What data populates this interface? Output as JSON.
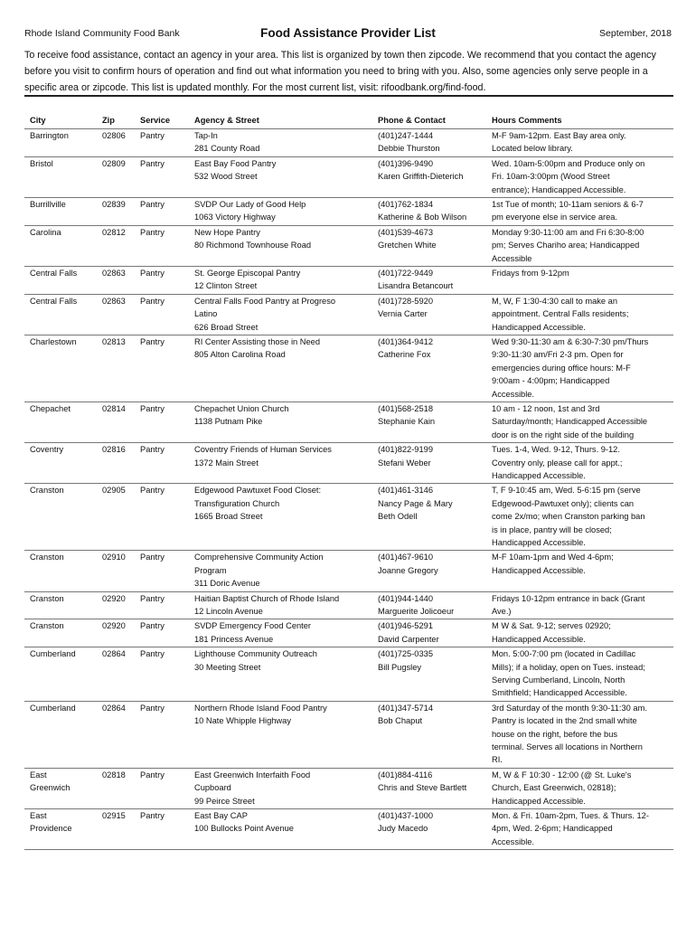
{
  "header": {
    "organization": "Rhode Island Community Food Bank",
    "title": "Food Assistance Provider List",
    "date": "September, 2018"
  },
  "intro": "To receive food assistance, contact an agency in your area. This list is organized by town then zipcode. We recommend that you contact the agency before you visit to confirm hours of operation and find out what information you need to bring with you. Also, some agencies only serve people in a specific area or zipcode. This list is updated monthly. For the most current list, visit: rifoodbank.org/find-food.",
  "table": {
    "columns": [
      "City",
      "Zip",
      "Service",
      "Agency & Street",
      "Phone & Contact",
      "Hours Comments"
    ],
    "rows": [
      {
        "city": [
          "Barrington"
        ],
        "zip": "02806",
        "service": "Pantry",
        "agency": [
          "Tap-In",
          "281 County Road"
        ],
        "contact": [
          "(401)247-1444",
          "Debbie Thurston"
        ],
        "hours": [
          "M-F 9am-12pm. East Bay area only.",
          "Located below library."
        ]
      },
      {
        "city": [
          "Bristol"
        ],
        "zip": "02809",
        "service": "Pantry",
        "agency": [
          "East Bay Food Pantry",
          "532 Wood Street"
        ],
        "contact": [
          "(401)396-9490",
          "Karen Griffith-Dieterich"
        ],
        "hours": [
          "Wed. 10am-5:00pm and Produce only on",
          "Fri. 10am-3:00pm (Wood Street",
          "entrance); Handicapped Accessible."
        ]
      },
      {
        "city": [
          "Burrillville"
        ],
        "zip": "02839",
        "service": "Pantry",
        "agency": [
          "SVDP Our Lady of Good Help",
          "1063 Victory Highway"
        ],
        "contact": [
          "(401)762-1834",
          "Katherine & Bob Wilson"
        ],
        "hours": [
          "1st Tue of month; 10-11am seniors & 6-7",
          "pm everyone else in service area."
        ]
      },
      {
        "city": [
          "Carolina"
        ],
        "zip": "02812",
        "service": "Pantry",
        "agency": [
          "New Hope Pantry",
          "80 Richmond Townhouse Road"
        ],
        "contact": [
          "(401)539-4673",
          "Gretchen White"
        ],
        "hours": [
          "Monday 9:30-11:00 am and Fri 6:30-8:00",
          "pm; Serves Chariho area; Handicapped",
          "Accessible"
        ]
      },
      {
        "city": [
          "Central Falls"
        ],
        "zip": "02863",
        "service": "Pantry",
        "agency": [
          "St. George Episcopal Pantry",
          "12 Clinton Street"
        ],
        "contact": [
          "(401)722-9449",
          "Lisandra Betancourt"
        ],
        "hours": [
          "Fridays from 9-12pm"
        ]
      },
      {
        "city": [
          "Central Falls"
        ],
        "zip": "02863",
        "service": "Pantry",
        "agency": [
          "Central Falls Food Pantry at Progreso",
          "Latino",
          "626 Broad Street"
        ],
        "contact": [
          "(401)728-5920",
          "Vernia Carter"
        ],
        "hours": [
          "M, W, F 1:30-4:30 call to make an",
          "appointment. Central Falls residents;",
          "Handicapped Accessible."
        ]
      },
      {
        "city": [
          "Charlestown"
        ],
        "zip": "02813",
        "service": "Pantry",
        "agency": [
          "RI Center Assisting those in Need",
          "805 Alton Carolina Road"
        ],
        "contact": [
          "(401)364-9412",
          "Catherine Fox"
        ],
        "hours": [
          "Wed 9:30-11:30 am & 6:30-7:30 pm/Thurs",
          "9:30-11:30 am/Fri 2-3 pm. Open for",
          "emergencies during office hours: M-F",
          "9:00am - 4:00pm; Handicapped",
          "Accessible."
        ]
      },
      {
        "city": [
          "Chepachet"
        ],
        "zip": "02814",
        "service": "Pantry",
        "agency": [
          "Chepachet Union Church",
          "1138 Putnam Pike"
        ],
        "contact": [
          "(401)568-2518",
          "Stephanie Kain"
        ],
        "hours": [
          "10 am - 12 noon, 1st and 3rd",
          "Saturday/month; Handicapped Accessible",
          "door is on the right side of the building"
        ]
      },
      {
        "city": [
          "Coventry"
        ],
        "zip": "02816",
        "service": "Pantry",
        "agency": [
          "Coventry Friends of Human Services",
          "1372 Main Street"
        ],
        "contact": [
          "(401)822-9199",
          "Stefani Weber"
        ],
        "hours": [
          "Tues. 1-4, Wed. 9-12, Thurs. 9-12.",
          "Coventry only, please call for appt.;",
          "Handicapped Accessible."
        ]
      },
      {
        "city": [
          "Cranston"
        ],
        "zip": "02905",
        "service": "Pantry",
        "agency": [
          "Edgewood Pawtuxet Food Closet:",
          "Transfiguration Church",
          "1665 Broad Street"
        ],
        "contact": [
          "(401)461-3146",
          "Nancy Page & Mary",
          "Beth Odell"
        ],
        "hours": [
          "T, F 9-10:45 am, Wed. 5-6:15 pm (serve",
          "Edgewood-Pawtuxet only); clients can",
          "come 2x/mo; when Cranston parking ban",
          "is in place, pantry will be closed;",
          "Handicapped Accessible."
        ]
      },
      {
        "city": [
          "Cranston"
        ],
        "zip": "02910",
        "service": "Pantry",
        "agency": [
          "Comprehensive Community Action",
          "Program",
          "311 Doric Avenue"
        ],
        "contact": [
          "(401)467-9610",
          "Joanne Gregory"
        ],
        "hours": [
          "M-F 10am-1pm and Wed 4-6pm;",
          "Handicapped Accessible."
        ]
      },
      {
        "city": [
          "Cranston"
        ],
        "zip": "02920",
        "service": "Pantry",
        "agency": [
          "Haitian Baptist Church of Rhode Island",
          "12 Lincoln Avenue"
        ],
        "contact": [
          "(401)944-1440",
          "Marguerite Jolicoeur"
        ],
        "hours": [
          "Fridays 10-12pm entrance in back (Grant",
          "Ave.)"
        ]
      },
      {
        "city": [
          "Cranston"
        ],
        "zip": "02920",
        "service": "Pantry",
        "agency": [
          "SVDP Emergency Food Center",
          "181 Princess Avenue"
        ],
        "contact": [
          "(401)946-5291",
          "David Carpenter"
        ],
        "hours": [
          "M W & Sat. 9-12; serves 02920;",
          "Handicapped Accessible."
        ]
      },
      {
        "city": [
          "Cumberland"
        ],
        "zip": "02864",
        "service": "Pantry",
        "agency": [
          "Lighthouse Community Outreach",
          "30 Meeting Street"
        ],
        "contact": [
          "(401)725-0335",
          "Bill Pugsley"
        ],
        "hours": [
          "Mon. 5:00-7:00 pm (located in Cadillac",
          "Mills); if a holiday, open on Tues. instead;",
          "Serving Cumberland, Lincoln, North",
          "Smithfield; Handicapped Accessible."
        ]
      },
      {
        "city": [
          "Cumberland"
        ],
        "zip": "02864",
        "service": "Pantry",
        "agency": [
          "Northern Rhode Island Food Pantry",
          "10 Nate Whipple Highway"
        ],
        "contact": [
          "(401)347-5714",
          "Bob Chaput"
        ],
        "hours": [
          "3rd Saturday of the month 9:30-11:30 am.",
          "Pantry is located in the 2nd small white",
          "house on the right, before the bus",
          "terminal. Serves all locations in Northern",
          "RI."
        ]
      },
      {
        "city": [
          "East",
          "Greenwich"
        ],
        "zip": "02818",
        "service": "Pantry",
        "agency": [
          "East Greenwich Interfaith Food",
          "Cupboard",
          "99 Peirce Street"
        ],
        "contact": [
          "(401)884-4116",
          "Chris and Steve Bartlett"
        ],
        "hours": [
          "M, W & F 10:30 - 12:00 (@ St. Luke's",
          "Church, East Greenwich, 02818);",
          "Handicapped Accessible."
        ]
      },
      {
        "city": [
          "East",
          "Providence"
        ],
        "zip": "02915",
        "service": "Pantry",
        "agency": [
          "East Bay CAP",
          "100 Bullocks Point Avenue"
        ],
        "contact": [
          "(401)437-1000",
          "Judy Macedo"
        ],
        "hours": [
          "Mon. & Fri. 10am-2pm, Tues. & Thurs. 12-",
          "4pm, Wed. 2-6pm; Handicapped",
          "Accessible."
        ]
      }
    ]
  }
}
